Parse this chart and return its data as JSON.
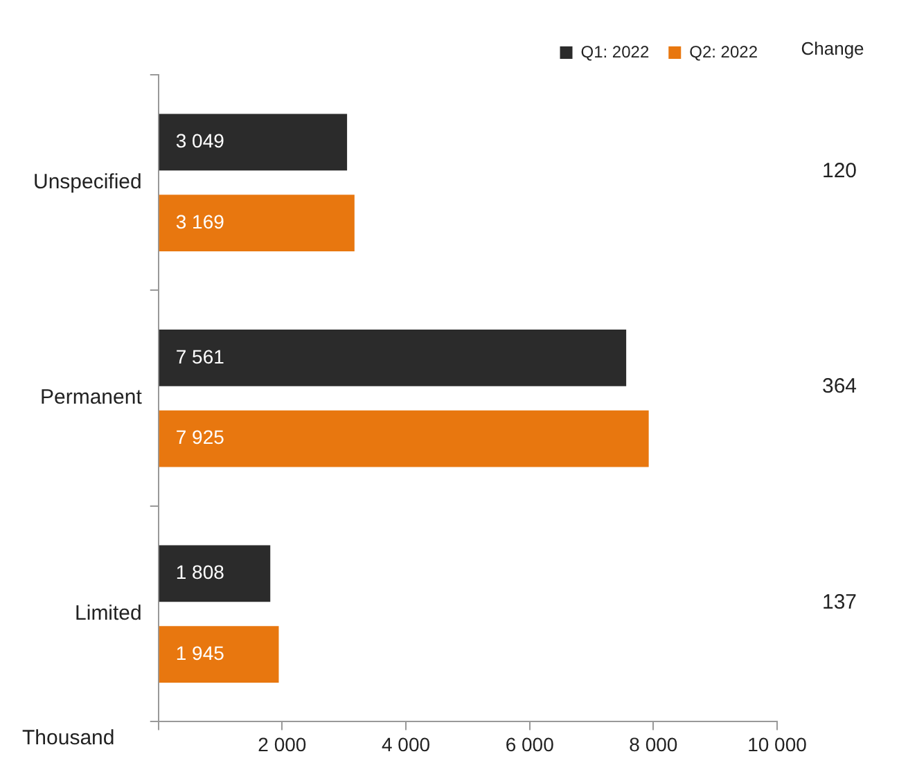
{
  "chart_data": {
    "type": "bar",
    "orientation": "horizontal",
    "xlabel": "Thousand",
    "categories": [
      "Unspecified",
      "Permanent",
      "Limited"
    ],
    "series": [
      {
        "name": "Q1: 2022",
        "color": "#2b2b2b",
        "values": [
          3049,
          7561,
          1808
        ],
        "value_labels": [
          "3 049",
          "7 561",
          "1 808"
        ]
      },
      {
        "name": "Q2: 2022",
        "color": "#e8770f",
        "values": [
          3169,
          7925,
          1945
        ],
        "value_labels": [
          "3 169",
          "7 925",
          "1 945"
        ]
      }
    ],
    "xlim": [
      0,
      10000
    ],
    "xticks": [
      {
        "value": 0,
        "label": null
      },
      {
        "value": 2000,
        "label": "2 000"
      },
      {
        "value": 4000,
        "label": "4 000"
      },
      {
        "value": 6000,
        "label": "6 000"
      },
      {
        "value": 8000,
        "label": "8 000"
      },
      {
        "value": 10000,
        "label": "10 000"
      }
    ],
    "grid": false,
    "legend": "top right",
    "annotations": [
      "Change",
      "120",
      "364",
      "137"
    ]
  }
}
